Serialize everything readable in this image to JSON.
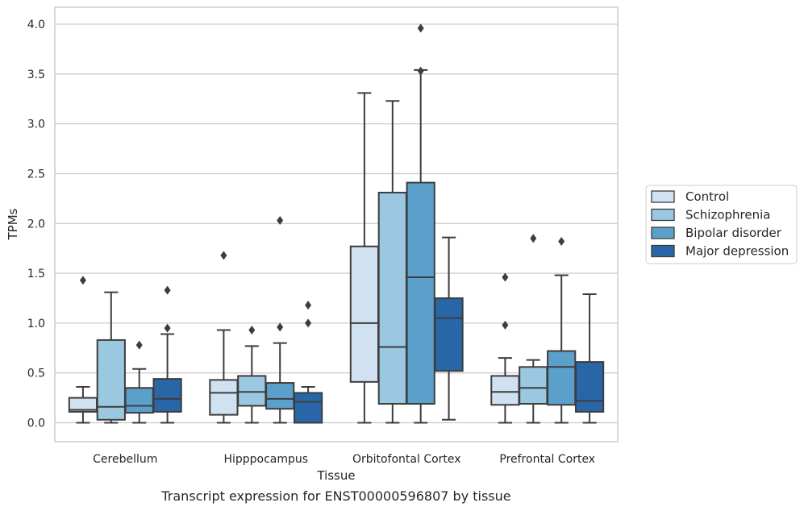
{
  "caption": "Transcript expression for ENST00000596807 by tissue",
  "chart_data": {
    "type": "boxplot",
    "title": "",
    "xlabel": "Tissue",
    "ylabel": "TPMs",
    "ylim": [
      -0.19,
      4.17
    ],
    "yticks": [
      "0.0",
      "0.5",
      "1.0",
      "1.5",
      "2.0",
      "2.5",
      "3.0",
      "3.5",
      "4.0"
    ],
    "grid": true,
    "legend_position": "right",
    "categories": [
      "Cerebellum",
      "Hipppocampus",
      "Orbitofontal Cortex",
      "Prefrontal Cortex"
    ],
    "series": [
      {
        "name": "Control",
        "color": "#d0e1f2",
        "boxes": [
          {
            "whislo": 0.0,
            "q1": 0.11,
            "med": 0.13,
            "q3": 0.25,
            "whishi": 0.36,
            "fliers": [
              1.43
            ]
          },
          {
            "whislo": 0.0,
            "q1": 0.08,
            "med": 0.3,
            "q3": 0.43,
            "whishi": 0.93,
            "fliers": [
              1.68
            ]
          },
          {
            "whislo": 0.0,
            "q1": 0.41,
            "med": 1.0,
            "q3": 1.77,
            "whishi": 3.31,
            "fliers": []
          },
          {
            "whislo": 0.0,
            "q1": 0.18,
            "med": 0.31,
            "q3": 0.47,
            "whishi": 0.65,
            "fliers": [
              0.98,
              1.46
            ]
          }
        ]
      },
      {
        "name": "Schizophrenia",
        "color": "#9ac8e0",
        "boxes": [
          {
            "whislo": 0.0,
            "q1": 0.03,
            "med": 0.16,
            "q3": 0.83,
            "whishi": 1.31,
            "fliers": []
          },
          {
            "whislo": 0.0,
            "q1": 0.17,
            "med": 0.31,
            "q3": 0.47,
            "whishi": 0.77,
            "fliers": [
              0.93
            ]
          },
          {
            "whislo": 0.0,
            "q1": 0.19,
            "med": 0.76,
            "q3": 2.31,
            "whishi": 3.23,
            "fliers": []
          },
          {
            "whislo": 0.0,
            "q1": 0.19,
            "med": 0.35,
            "q3": 0.56,
            "whishi": 0.63,
            "fliers": [
              1.85
            ]
          }
        ]
      },
      {
        "name": "Bipolar disorder",
        "color": "#5b9fcb",
        "boxes": [
          {
            "whislo": 0.0,
            "q1": 0.1,
            "med": 0.17,
            "q3": 0.35,
            "whishi": 0.54,
            "fliers": [
              0.78
            ]
          },
          {
            "whislo": 0.0,
            "q1": 0.14,
            "med": 0.24,
            "q3": 0.4,
            "whishi": 0.8,
            "fliers": [
              0.96,
              2.03
            ]
          },
          {
            "whislo": 0.0,
            "q1": 0.19,
            "med": 1.46,
            "q3": 2.41,
            "whishi": 3.54,
            "fliers": [
              3.53,
              3.96
            ]
          },
          {
            "whislo": 0.0,
            "q1": 0.18,
            "med": 0.56,
            "q3": 0.72,
            "whishi": 1.48,
            "fliers": [
              1.82
            ]
          }
        ]
      },
      {
        "name": "Major depression",
        "color": "#2866a8",
        "boxes": [
          {
            "whislo": 0.0,
            "q1": 0.11,
            "med": 0.24,
            "q3": 0.44,
            "whishi": 0.89,
            "fliers": [
              0.95,
              1.33
            ]
          },
          {
            "whislo": 0.0,
            "q1": 0.0,
            "med": 0.21,
            "q3": 0.3,
            "whishi": 0.36,
            "fliers": [
              1.0,
              1.18
            ]
          },
          {
            "whislo": 0.03,
            "q1": 0.52,
            "med": 1.05,
            "q3": 1.25,
            "whishi": 1.86,
            "fliers": []
          },
          {
            "whislo": 0.0,
            "q1": 0.11,
            "med": 0.22,
            "q3": 0.61,
            "whishi": 1.29,
            "fliers": []
          }
        ]
      }
    ]
  }
}
